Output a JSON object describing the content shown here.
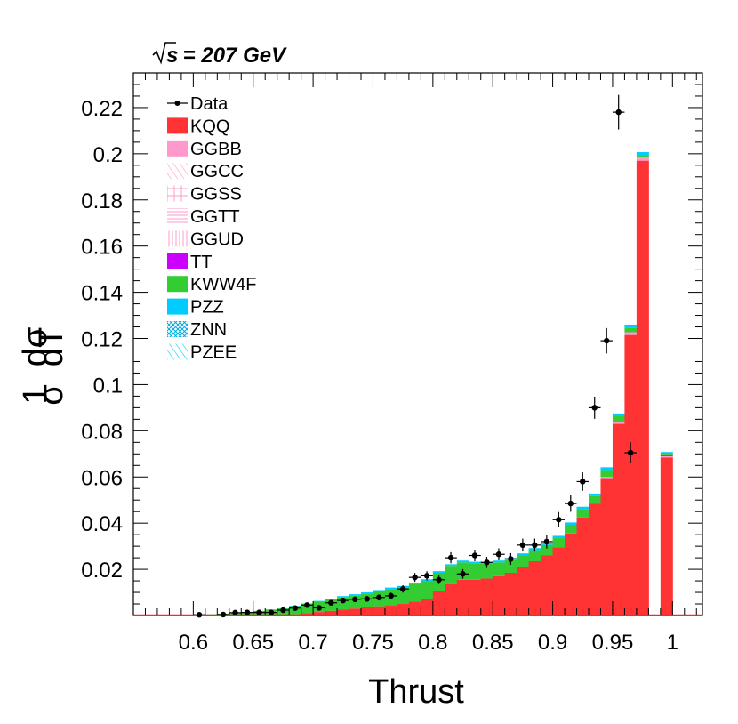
{
  "chart_data": {
    "type": "bar",
    "energy_label": "s",
    "energy_value": " = 207 GeV",
    "xlabel": "Thrust",
    "ylabel_num": "1",
    "ylabel_den": "σ",
    "ylabel_dnum": "dσ",
    "ylabel_dden": "dT",
    "xlim": [
      0.55,
      1.025
    ],
    "ylim": [
      0,
      0.235
    ],
    "bin_width": 0.01,
    "grid": false,
    "legend_position": "top-left",
    "x_ticks": [
      {
        "value": 0.6,
        "label": "0.6"
      },
      {
        "value": 0.65,
        "label": "0.65"
      },
      {
        "value": 0.7,
        "label": "0.7"
      },
      {
        "value": 0.75,
        "label": "0.75"
      },
      {
        "value": 0.8,
        "label": "0.8"
      },
      {
        "value": 0.85,
        "label": "0.85"
      },
      {
        "value": 0.9,
        "label": "0.9"
      },
      {
        "value": 0.95,
        "label": "0.95"
      },
      {
        "value": 1.0,
        "label": "1"
      }
    ],
    "y_ticks": [
      {
        "value": 0.02,
        "label": "0.02"
      },
      {
        "value": 0.04,
        "label": "0.04"
      },
      {
        "value": 0.06,
        "label": "0.06"
      },
      {
        "value": 0.08,
        "label": "0.08"
      },
      {
        "value": 0.1,
        "label": "0.1"
      },
      {
        "value": 0.12,
        "label": "0.12"
      },
      {
        "value": 0.14,
        "label": "0.14"
      },
      {
        "value": 0.16,
        "label": "0.16"
      },
      {
        "value": 0.18,
        "label": "0.18"
      },
      {
        "value": 0.2,
        "label": "0.2"
      },
      {
        "value": 0.22,
        "label": "0.22"
      }
    ],
    "legend": [
      {
        "name": "Data",
        "style": "marker",
        "color": "#000000"
      },
      {
        "name": "KQQ",
        "style": "fill",
        "color": "#ff3333"
      },
      {
        "name": "GGBB",
        "style": "fill",
        "color": "#ff99cc"
      },
      {
        "name": "GGCC",
        "style": "hatch-diag",
        "color": "#ff99cc"
      },
      {
        "name": "GGSS",
        "style": "hatch-cross",
        "color": "#ff99cc"
      },
      {
        "name": "GGTT",
        "style": "hatch-horiz",
        "color": "#ff99cc"
      },
      {
        "name": "GGUD",
        "style": "hatch-vert",
        "color": "#ff99cc"
      },
      {
        "name": "TT",
        "style": "fill",
        "color": "#cc00ff"
      },
      {
        "name": "KWW4F",
        "style": "fill",
        "color": "#33cc33"
      },
      {
        "name": "PZZ",
        "style": "fill",
        "color": "#00ccff"
      },
      {
        "name": "ZNN",
        "style": "hatch-x",
        "color": "#00ccff"
      },
      {
        "name": "PZEE",
        "style": "hatch-diag",
        "color": "#00ccff"
      }
    ],
    "bins": {
      "x_low": [
        0.6,
        0.61,
        0.62,
        0.63,
        0.64,
        0.65,
        0.66,
        0.67,
        0.68,
        0.69,
        0.7,
        0.71,
        0.72,
        0.73,
        0.74,
        0.75,
        0.76,
        0.77,
        0.78,
        0.79,
        0.8,
        0.81,
        0.82,
        0.83,
        0.84,
        0.85,
        0.86,
        0.87,
        0.88,
        0.89,
        0.9,
        0.91,
        0.92,
        0.93,
        0.94,
        0.95,
        0.96,
        0.97,
        0.98,
        0.99
      ],
      "kqq": [
        0.0,
        0.0,
        0.0,
        0.0,
        0.0,
        0.0,
        0.0,
        0.0,
        0.0005,
        0.001,
        0.0015,
        0.002,
        0.0025,
        0.003,
        0.0035,
        0.004,
        0.0045,
        0.005,
        0.006,
        0.007,
        0.0105,
        0.0135,
        0.0155,
        0.0155,
        0.016,
        0.017,
        0.0185,
        0.021,
        0.0235,
        0.026,
        0.0295,
        0.0355,
        0.0425,
        0.0485,
        0.0595,
        0.083,
        0.1215,
        0.197,
        0.0,
        0.0685
      ],
      "kww4f": [
        0.0003,
        0.0005,
        0.0008,
        0.0012,
        0.0015,
        0.002,
        0.0025,
        0.003,
        0.0035,
        0.004,
        0.0045,
        0.005,
        0.0055,
        0.0058,
        0.006,
        0.0065,
        0.007,
        0.0072,
        0.0075,
        0.008,
        0.008,
        0.008,
        0.0075,
        0.007,
        0.0065,
        0.006,
        0.0055,
        0.005,
        0.0048,
        0.0045,
        0.004,
        0.0038,
        0.0035,
        0.0032,
        0.003,
        0.0025,
        0.002,
        0.001,
        0.0,
        0.0005
      ],
      "pzz": [
        0.0,
        0.0,
        0.0,
        0.0,
        0.0,
        0.0,
        0.0001,
        0.0001,
        0.0002,
        0.0002,
        0.0003,
        0.0003,
        0.0004,
        0.0004,
        0.0005,
        0.0005,
        0.0006,
        0.0006,
        0.0006,
        0.0007,
        0.0007,
        0.0007,
        0.0008,
        0.0008,
        0.0008,
        0.0008,
        0.0009,
        0.0009,
        0.0009,
        0.001,
        0.001,
        0.001,
        0.0011,
        0.0011,
        0.0012,
        0.0012,
        0.0013,
        0.0012,
        0.0,
        0.0005
      ],
      "ggbb": [
        0.0,
        0.0,
        0.0,
        0.0,
        0.0,
        0.0,
        0.0,
        0.0,
        0.0,
        0.0,
        0.0,
        0.0,
        0.0,
        0.0,
        0.0,
        0.0,
        0.0,
        0.0,
        0.0,
        0.0,
        0.0,
        0.0,
        0.0,
        0.0,
        0.0,
        0.0,
        0.0,
        0.0,
        0.0,
        0.0,
        0.0,
        0.0,
        0.0,
        0.0,
        0.0005,
        0.0008,
        0.0012,
        0.0015,
        0.0,
        0.0005
      ],
      "tt": [
        0.0,
        0.0,
        0.0,
        0.0,
        0.0,
        0.0,
        0.0,
        0.0,
        0.0,
        0.0,
        0.0,
        0.0,
        0.0,
        0.0,
        0.0,
        0.0,
        0.0,
        0.0,
        0.0,
        0.0,
        0.0,
        0.0,
        0.0,
        0.0,
        0.0,
        0.0,
        0.0,
        0.0,
        0.0,
        0.0,
        0.0,
        0.0,
        0.0,
        0.0,
        0.0,
        0.0,
        0.0,
        0.0,
        0.0,
        0.0008
      ]
    },
    "data_points": [
      {
        "x": 0.6,
        "y": 0.0003,
        "err": 0.0003
      },
      {
        "x": 0.62,
        "y": 0.0004,
        "err": 0.0003
      },
      {
        "x": 0.63,
        "y": 0.0012,
        "err": 0.0004
      },
      {
        "x": 0.64,
        "y": 0.0013,
        "err": 0.0004
      },
      {
        "x": 0.65,
        "y": 0.0013,
        "err": 0.0004
      },
      {
        "x": 0.66,
        "y": 0.0013,
        "err": 0.0004
      },
      {
        "x": 0.67,
        "y": 0.0023,
        "err": 0.0006
      },
      {
        "x": 0.68,
        "y": 0.0032,
        "err": 0.0007
      },
      {
        "x": 0.69,
        "y": 0.0045,
        "err": 0.0008
      },
      {
        "x": 0.7,
        "y": 0.0033,
        "err": 0.0007
      },
      {
        "x": 0.71,
        "y": 0.0055,
        "err": 0.0009
      },
      {
        "x": 0.72,
        "y": 0.0065,
        "err": 0.001
      },
      {
        "x": 0.73,
        "y": 0.007,
        "err": 0.0011
      },
      {
        "x": 0.74,
        "y": 0.0072,
        "err": 0.0012
      },
      {
        "x": 0.75,
        "y": 0.0078,
        "err": 0.0013
      },
      {
        "x": 0.76,
        "y": 0.0085,
        "err": 0.0014
      },
      {
        "x": 0.77,
        "y": 0.0115,
        "err": 0.0016
      },
      {
        "x": 0.78,
        "y": 0.0165,
        "err": 0.0019
      },
      {
        "x": 0.79,
        "y": 0.0172,
        "err": 0.002
      },
      {
        "x": 0.8,
        "y": 0.0155,
        "err": 0.0019
      },
      {
        "x": 0.81,
        "y": 0.025,
        "err": 0.0024
      },
      {
        "x": 0.82,
        "y": 0.018,
        "err": 0.0021
      },
      {
        "x": 0.83,
        "y": 0.026,
        "err": 0.0025
      },
      {
        "x": 0.84,
        "y": 0.023,
        "err": 0.0024
      },
      {
        "x": 0.85,
        "y": 0.0265,
        "err": 0.0026
      },
      {
        "x": 0.86,
        "y": 0.0245,
        "err": 0.0025
      },
      {
        "x": 0.87,
        "y": 0.0305,
        "err": 0.0028
      },
      {
        "x": 0.88,
        "y": 0.0305,
        "err": 0.0028
      },
      {
        "x": 0.89,
        "y": 0.032,
        "err": 0.003
      },
      {
        "x": 0.9,
        "y": 0.0415,
        "err": 0.0033
      },
      {
        "x": 0.91,
        "y": 0.0485,
        "err": 0.0036
      },
      {
        "x": 0.92,
        "y": 0.058,
        "err": 0.004
      },
      {
        "x": 0.93,
        "y": 0.09,
        "err": 0.0048
      },
      {
        "x": 0.94,
        "y": 0.119,
        "err": 0.0055
      },
      {
        "x": 0.95,
        "y": 0.218,
        "err": 0.0075
      },
      {
        "x": 0.96,
        "y": 0.0705,
        "err": 0.0045
      }
    ]
  }
}
